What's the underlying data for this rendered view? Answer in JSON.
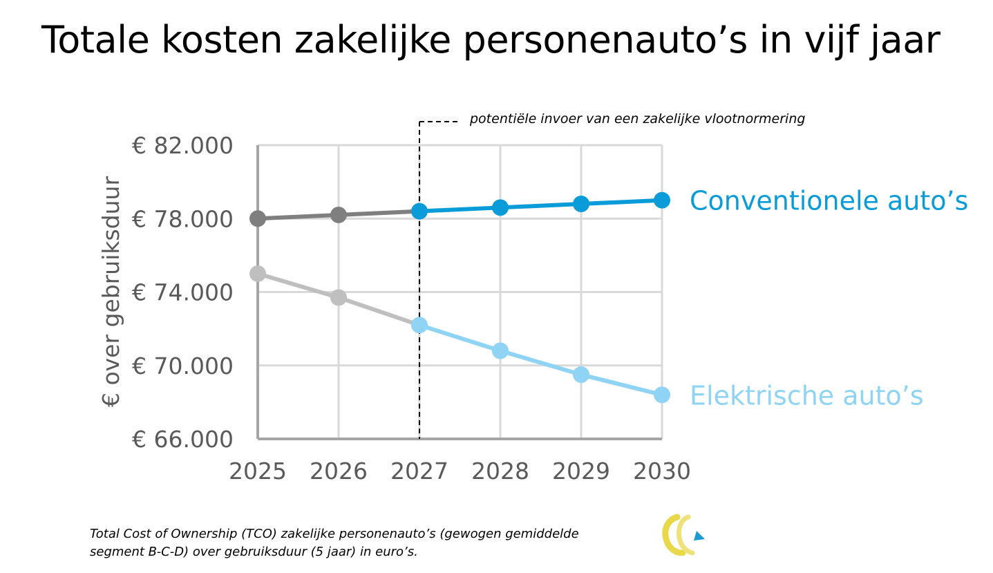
{
  "title": "Totale kosten zakelijke personenauto’s in vijf jaar",
  "caption": {
    "line1": "Total Cost of Ownership (TCO) zakelijke personenauto’s (gewogen gemiddelde",
    "line2": "segment B-C-D) over gebruiksduur (5 jaar) in euro’s."
  },
  "logo": {
    "icon": "organization-logo-icon"
  },
  "colors": {
    "conventional_accent": "#0A9CD8",
    "electric_accent": "#8FD3F5",
    "conventional_past": "#7F7F7F",
    "electric_past": "#BFBFBF",
    "grid": "#D9D9D9",
    "axis": "#A6A6A6",
    "tick_label": "#595959"
  },
  "chart_data": {
    "type": "line",
    "x": [
      "2025",
      "2026",
      "2027",
      "2028",
      "2029",
      "2030"
    ],
    "ylabel": "€ over gebruiksduur",
    "ylim": [
      66000,
      82000
    ],
    "yticks": [
      82000,
      78000,
      74000,
      70000,
      66000
    ],
    "ytick_labels": [
      "€ 82.000",
      "€ 78.000",
      "€ 74.000",
      "€ 70.000",
      "€ 66.000"
    ],
    "grid": true,
    "series": [
      {
        "name": "Conventionele auto’s",
        "values": [
          78000,
          78200,
          78400,
          78600,
          78800,
          79000
        ],
        "color": "#0A9CD8",
        "past_color": "#7F7F7F"
      },
      {
        "name": "Elektrische auto’s",
        "values": [
          75000,
          73700,
          72200,
          70800,
          69500,
          68400
        ],
        "color": "#8FD3F5",
        "past_color": "#BFBFBF"
      }
    ],
    "annotation": {
      "x": "2027",
      "text": "potentiële invoer van een zakelijke vlootnormering"
    }
  }
}
